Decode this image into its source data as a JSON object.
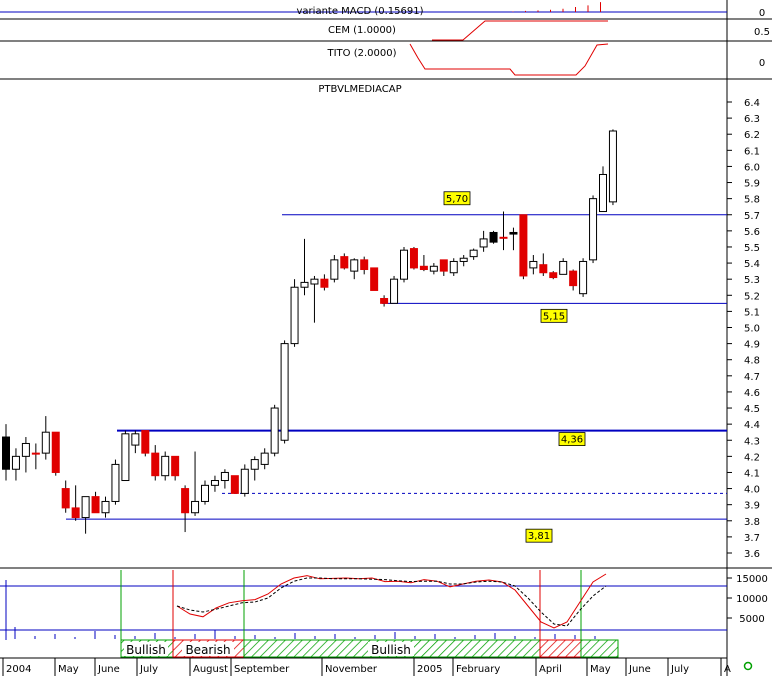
{
  "chart_data": [
    {
      "type": "line",
      "title": "variante MACD (0.15691)",
      "ytick_labels": [
        "0"
      ],
      "ylim": [
        -1,
        1
      ],
      "series": [
        {
          "values": [
            0.05,
            0.1,
            0.15,
            0.2,
            0.3,
            0.45,
            0.6,
            0.9
          ]
        }
      ]
    },
    {
      "type": "line",
      "title": "CEM (1.0000)",
      "ytick_labels": [
        "0.5"
      ],
      "ylim": [
        0,
        1
      ]
    },
    {
      "type": "line",
      "title": "TITO (2.0000)",
      "ytick_labels": [
        "0"
      ],
      "ylim": [
        -1,
        1
      ]
    },
    {
      "type": "candlestick",
      "title": "PTBVLMEDIACAP",
      "ylim": [
        3.5,
        6.5
      ],
      "yticks": [
        3.6,
        3.7,
        3.8,
        3.9,
        4.0,
        4.1,
        4.2,
        4.3,
        4.4,
        4.5,
        4.6,
        4.7,
        4.8,
        4.9,
        5.0,
        5.1,
        5.2,
        5.3,
        5.4,
        5.5,
        5.6,
        5.7,
        5.8,
        5.9,
        6.0,
        6.1,
        6.2,
        6.3,
        6.4
      ],
      "ytick_labels": [
        "3.6",
        "3.7",
        "3.8",
        "3.9",
        "4.0",
        "4.1",
        "4.2",
        "4.3",
        "4.4",
        "4.5",
        "4.6",
        "4.7",
        "4.8",
        "4.9",
        "5.0",
        "5.1",
        "5.2",
        "5.3",
        "5.4",
        "5.5",
        "5.6",
        "5.7",
        "5.8",
        "5.9",
        "6.0",
        "6.1",
        "6.2",
        "6.3",
        "6.4"
      ],
      "levels": [
        {
          "label": "5,70",
          "value": 5.7
        },
        {
          "label": "5,15",
          "value": 5.15
        },
        {
          "label": "4,36",
          "value": 4.36
        },
        {
          "label": "3,81",
          "value": 3.81
        }
      ],
      "dashed_level": 3.97,
      "candles": [
        {
          "o": 4.32,
          "h": 4.4,
          "l": 4.05,
          "c": 4.12,
          "color": "black"
        },
        {
          "o": 4.12,
          "h": 4.25,
          "l": 4.05,
          "c": 4.2,
          "color": "white"
        },
        {
          "o": 4.2,
          "h": 4.32,
          "l": 4.1,
          "c": 4.28,
          "color": "white"
        },
        {
          "o": 4.22,
          "h": 4.28,
          "l": 4.12,
          "c": 4.22,
          "color": "red"
        },
        {
          "o": 4.22,
          "h": 4.45,
          "l": 4.18,
          "c": 4.35,
          "color": "white"
        },
        {
          "o": 4.35,
          "h": 4.35,
          "l": 4.08,
          "c": 4.1,
          "color": "red"
        },
        {
          "o": 4.0,
          "h": 4.05,
          "l": 3.85,
          "c": 3.88,
          "color": "red"
        },
        {
          "o": 3.88,
          "h": 4.02,
          "l": 3.8,
          "c": 3.82,
          "color": "red"
        },
        {
          "o": 3.82,
          "h": 3.95,
          "l": 3.72,
          "c": 3.95,
          "color": "white"
        },
        {
          "o": 3.95,
          "h": 3.98,
          "l": 3.85,
          "c": 3.85,
          "color": "red"
        },
        {
          "o": 3.85,
          "h": 3.95,
          "l": 3.82,
          "c": 3.92,
          "color": "white"
        },
        {
          "o": 3.92,
          "h": 4.18,
          "l": 3.9,
          "c": 4.15,
          "color": "white"
        },
        {
          "o": 4.05,
          "h": 4.36,
          "l": 4.05,
          "c": 4.34,
          "color": "white"
        },
        {
          "o": 4.27,
          "h": 4.36,
          "l": 4.22,
          "c": 4.34,
          "color": "white"
        },
        {
          "o": 4.36,
          "h": 4.36,
          "l": 4.2,
          "c": 4.22,
          "color": "red"
        },
        {
          "o": 4.22,
          "h": 4.27,
          "l": 4.05,
          "c": 4.08,
          "color": "red"
        },
        {
          "o": 4.08,
          "h": 4.23,
          "l": 4.05,
          "c": 4.2,
          "color": "white"
        },
        {
          "o": 4.2,
          "h": 4.2,
          "l": 4.05,
          "c": 4.08,
          "color": "red"
        },
        {
          "o": 4.0,
          "h": 4.02,
          "l": 3.73,
          "c": 3.85,
          "color": "red"
        },
        {
          "o": 3.85,
          "h": 4.23,
          "l": 3.83,
          "c": 3.92,
          "color": "white"
        },
        {
          "o": 3.92,
          "h": 4.05,
          "l": 3.9,
          "c": 4.02,
          "color": "white"
        },
        {
          "o": 4.02,
          "h": 4.08,
          "l": 3.98,
          "c": 4.05,
          "color": "white"
        },
        {
          "o": 4.05,
          "h": 4.12,
          "l": 4.0,
          "c": 4.1,
          "color": "white"
        },
        {
          "o": 4.08,
          "h": 4.08,
          "l": 3.97,
          "c": 3.97,
          "color": "red"
        },
        {
          "o": 3.97,
          "h": 4.15,
          "l": 3.95,
          "c": 4.12,
          "color": "white"
        },
        {
          "o": 4.12,
          "h": 4.2,
          "l": 4.05,
          "c": 4.18,
          "color": "white"
        },
        {
          "o": 4.15,
          "h": 4.25,
          "l": 4.12,
          "c": 4.22,
          "color": "white"
        },
        {
          "o": 4.22,
          "h": 4.52,
          "l": 4.2,
          "c": 4.5,
          "color": "white"
        },
        {
          "o": 4.3,
          "h": 4.92,
          "l": 4.28,
          "c": 4.9,
          "color": "white"
        },
        {
          "o": 4.9,
          "h": 5.3,
          "l": 4.88,
          "c": 5.25,
          "color": "white"
        },
        {
          "o": 5.25,
          "h": 5.55,
          "l": 5.2,
          "c": 5.28,
          "color": "white"
        },
        {
          "o": 5.27,
          "h": 5.32,
          "l": 5.03,
          "c": 5.3,
          "color": "white"
        },
        {
          "o": 5.25,
          "h": 5.33,
          "l": 5.23,
          "c": 5.3,
          "color": "red"
        },
        {
          "o": 5.3,
          "h": 5.45,
          "l": 5.28,
          "c": 5.42,
          "color": "white"
        },
        {
          "o": 5.44,
          "h": 5.46,
          "l": 5.36,
          "c": 5.37,
          "color": "red"
        },
        {
          "o": 5.35,
          "h": 5.43,
          "l": 5.3,
          "c": 5.42,
          "color": "white"
        },
        {
          "o": 5.42,
          "h": 5.44,
          "l": 5.33,
          "c": 5.36,
          "color": "red"
        },
        {
          "o": 5.37,
          "h": 5.37,
          "l": 5.23,
          "c": 5.23,
          "color": "red"
        },
        {
          "o": 5.18,
          "h": 5.2,
          "l": 5.13,
          "c": 5.15,
          "color": "red"
        },
        {
          "o": 5.15,
          "h": 5.32,
          "l": 5.15,
          "c": 5.3,
          "color": "white"
        },
        {
          "o": 5.3,
          "h": 5.5,
          "l": 5.28,
          "c": 5.48,
          "color": "white"
        },
        {
          "o": 5.49,
          "h": 5.5,
          "l": 5.36,
          "c": 5.37,
          "color": "red"
        },
        {
          "o": 5.38,
          "h": 5.45,
          "l": 5.35,
          "c": 5.36,
          "color": "red"
        },
        {
          "o": 5.35,
          "h": 5.4,
          "l": 5.33,
          "c": 5.38,
          "color": "white"
        },
        {
          "o": 5.42,
          "h": 5.42,
          "l": 5.32,
          "c": 5.35,
          "color": "red"
        },
        {
          "o": 5.34,
          "h": 5.43,
          "l": 5.32,
          "c": 5.41,
          "color": "white"
        },
        {
          "o": 5.41,
          "h": 5.45,
          "l": 5.38,
          "c": 5.43,
          "color": "white"
        },
        {
          "o": 5.44,
          "h": 5.49,
          "l": 5.42,
          "c": 5.48,
          "color": "white"
        },
        {
          "o": 5.5,
          "h": 5.6,
          "l": 5.47,
          "c": 5.55,
          "color": "white"
        },
        {
          "o": 5.59,
          "h": 5.6,
          "l": 5.52,
          "c": 5.53,
          "color": "black"
        },
        {
          "o": 5.56,
          "h": 5.72,
          "l": 5.48,
          "c": 5.56,
          "color": "red"
        },
        {
          "o": 5.58,
          "h": 5.62,
          "l": 5.48,
          "c": 5.59,
          "color": "black"
        },
        {
          "o": 5.7,
          "h": 5.7,
          "l": 5.3,
          "c": 5.32,
          "color": "red"
        },
        {
          "o": 5.37,
          "h": 5.45,
          "l": 5.33,
          "c": 5.41,
          "color": "white"
        },
        {
          "o": 5.39,
          "h": 5.46,
          "l": 5.32,
          "c": 5.34,
          "color": "red"
        },
        {
          "o": 5.34,
          "h": 5.35,
          "l": 5.3,
          "c": 5.31,
          "color": "red"
        },
        {
          "o": 5.33,
          "h": 5.43,
          "l": 5.33,
          "c": 5.41,
          "color": "white"
        },
        {
          "o": 5.35,
          "h": 5.36,
          "l": 5.23,
          "c": 5.26,
          "color": "red"
        },
        {
          "o": 5.21,
          "h": 5.43,
          "l": 5.19,
          "c": 5.41,
          "color": "white"
        },
        {
          "o": 5.42,
          "h": 5.82,
          "l": 5.4,
          "c": 5.8,
          "color": "white"
        },
        {
          "o": 5.72,
          "h": 6.0,
          "l": 5.72,
          "c": 5.95,
          "color": "white"
        },
        {
          "o": 5.78,
          "h": 6.23,
          "l": 5.76,
          "c": 6.22,
          "color": "white"
        }
      ]
    },
    {
      "type": "line",
      "title": "",
      "ylim": [
        0,
        17000
      ],
      "yticks": [
        5000,
        10000,
        15000
      ],
      "ytick_labels": [
        "5000",
        "10000",
        "15000"
      ],
      "series": [
        {
          "values": [
            8000,
            6000,
            5300,
            7500,
            8800,
            9300,
            9600,
            11000,
            13500,
            15000,
            15600,
            14800,
            14900,
            15000,
            14800,
            15000,
            14100,
            14200,
            13800,
            14600,
            14200,
            12800,
            13500,
            14200,
            14500,
            14000,
            12000,
            8000,
            4000,
            2500,
            4000,
            9000,
            14000,
            16000
          ],
          "color": "red"
        },
        {
          "values": [
            8000,
            7000,
            6500,
            7200,
            8000,
            8800,
            9000,
            10000,
            12500,
            14200,
            15000,
            15000,
            14800,
            14800,
            14800,
            14700,
            14600,
            14300,
            14100,
            14200,
            14200,
            13500,
            13500,
            14000,
            14200,
            14000,
            13000,
            10000,
            6500,
            3500,
            3000,
            7000,
            10500,
            13000
          ],
          "color": "black",
          "style": "dashed"
        }
      ],
      "regime_labels": [
        "Bullish",
        "Bearish",
        "Bullish"
      ],
      "xtick_labels": [
        "2004",
        "May",
        "June",
        "July",
        "August",
        "September",
        "November",
        "2005",
        "February",
        "April",
        "May",
        "June",
        "July",
        "A"
      ]
    }
  ]
}
